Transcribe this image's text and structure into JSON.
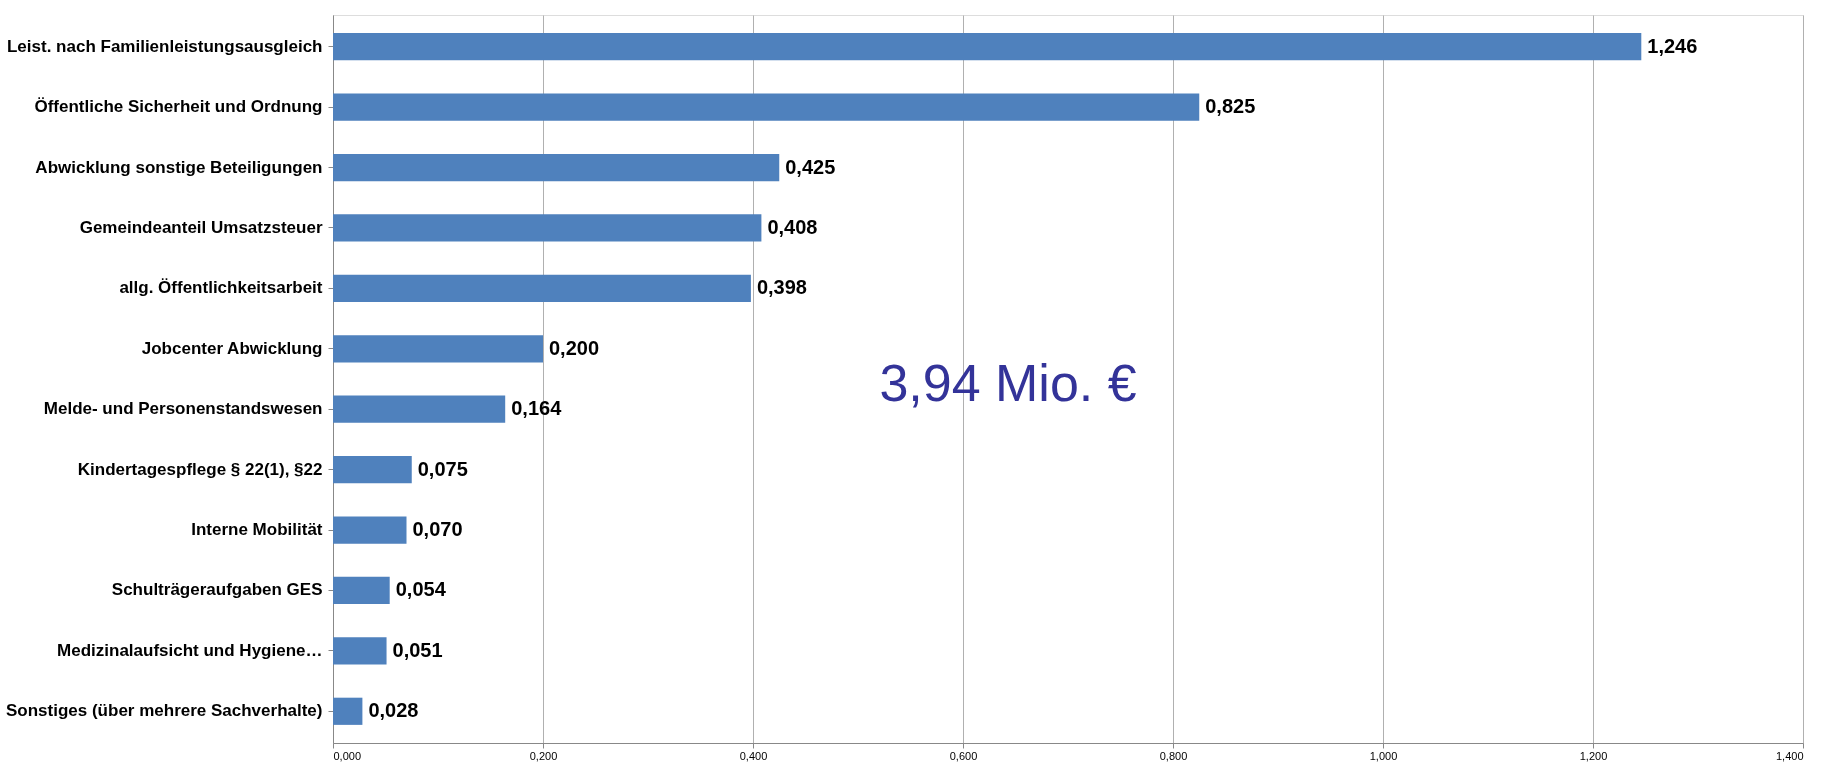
{
  "chart_data": {
    "type": "bar",
    "orientation": "horizontal",
    "categories": [
      "Leist. nach Familienleistungsausgleich",
      "Öffentliche Sicherheit und Ordnung",
      "Abwicklung sonstige Beteiligungen",
      "Gemeindeanteil  Umsatzsteuer",
      "allg. Öffentlichkeitsarbeit",
      "Jobcenter Abwicklung",
      "Melde- und Personenstandswesen",
      "Kindertagespflege § 22(1), §22",
      "Interne Mobilität",
      "Schulträgeraufgaben GES",
      "Medizinalaufsicht und Hygiene…",
      "Sonstiges (über mehrere Sachverhalte)"
    ],
    "values": [
      1.246,
      0.825,
      0.425,
      0.408,
      0.398,
      0.2,
      0.164,
      0.075,
      0.07,
      0.054,
      0.051,
      0.028
    ],
    "value_labels": [
      "1,246",
      "0,825",
      "0,425",
      "0,408",
      "0,398",
      "0,200",
      "0,164",
      "0,075",
      "0,070",
      "0,054",
      "0,051",
      "0,028"
    ],
    "color": "#4f81bd",
    "xlim": [
      0,
      1.4
    ],
    "xticks": [
      {
        "value": 0,
        "label": "0,000"
      },
      {
        "value": 0.2,
        "label": "0,200"
      },
      {
        "value": 0.4,
        "label": "0,400"
      },
      {
        "value": 0.6,
        "label": "0,600"
      },
      {
        "value": 0.8,
        "label": "0,800"
      },
      {
        "value": 1.0,
        "label": "1,000"
      },
      {
        "value": 1.2,
        "label": "1,200"
      },
      {
        "value": 1.4,
        "label": "1,400"
      }
    ],
    "grid": "x",
    "annotations": [
      "3,94 Mio. €"
    ]
  }
}
